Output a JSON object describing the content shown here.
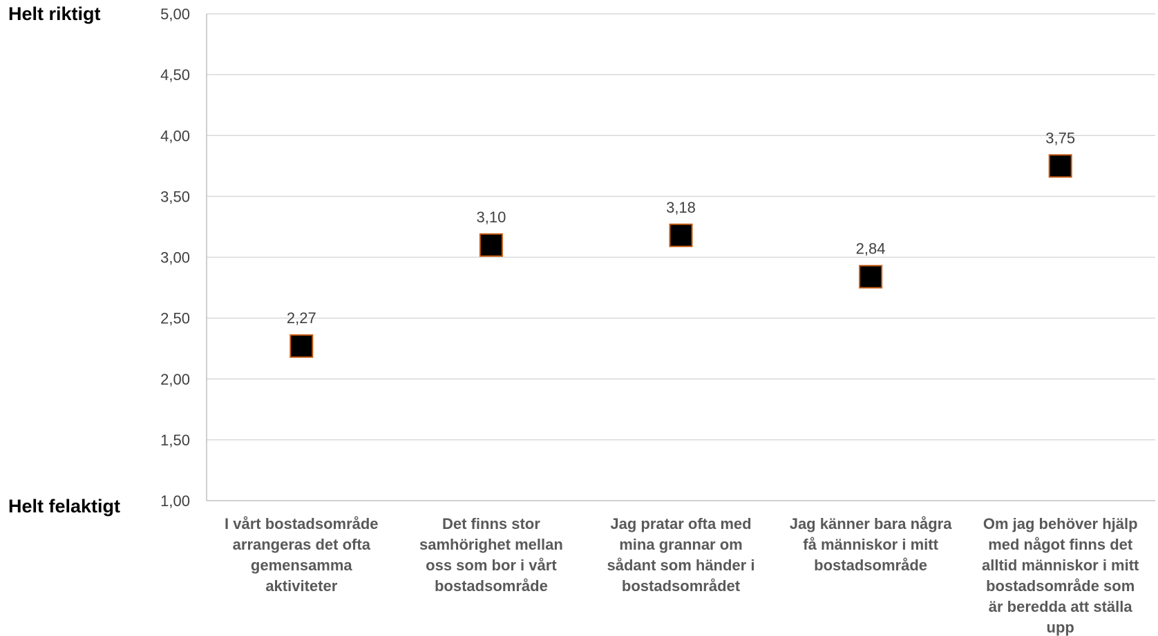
{
  "chart_data": {
    "type": "scatter",
    "title": "",
    "xlabel": "",
    "ylabel": "",
    "y_top_label": "Helt riktigt",
    "y_bottom_label": "Helt felaktigt",
    "ylim": [
      1,
      5
    ],
    "yticks": [
      "1,00",
      "1,50",
      "2,00",
      "2,50",
      "3,00",
      "3,50",
      "4,00",
      "4,50",
      "5,00"
    ],
    "grid": true,
    "legend": "none",
    "marker_color": "#000000",
    "marker_border_color": "#C55A11",
    "categories": [
      [
        "I vårt bostadsområde",
        "arrangeras det ofta",
        "gemensamma",
        "aktiviteter"
      ],
      [
        "Det finns stor",
        "samhörighet mellan",
        "oss som bor i vårt",
        "bostadsområde"
      ],
      [
        "Jag pratar ofta med",
        "mina grannar om",
        "sådant som händer i",
        "bostadsområdet"
      ],
      [
        "Jag känner bara några",
        "få människor i mitt",
        "bostadsområde"
      ],
      [
        "Om jag behöver hjälp",
        "med något finns det",
        "alltid människor i mitt",
        "bostadsområde som",
        "är beredda att ställa",
        "upp"
      ]
    ],
    "values": [
      2.27,
      3.1,
      3.18,
      2.84,
      3.75
    ],
    "value_labels": [
      "2,27",
      "3,10",
      "3,18",
      "2,84",
      "3,75"
    ]
  }
}
